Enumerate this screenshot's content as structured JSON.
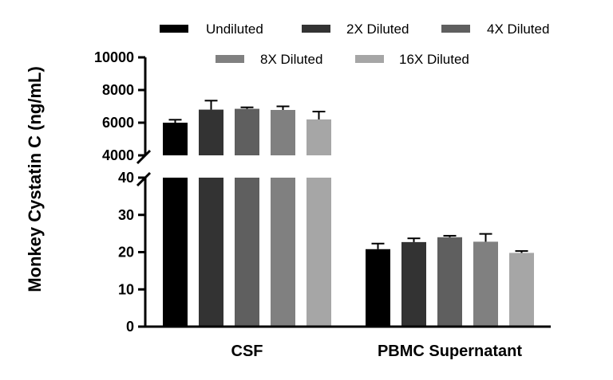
{
  "chart_data": {
    "type": "bar",
    "ylabel": "Monkey Cystatin C (ng/mL)",
    "categories": [
      "CSF",
      "PBMC Supernatant"
    ],
    "series": [
      {
        "name": "Undiluted",
        "color": "#000000",
        "values": [
          6000,
          20.8
        ],
        "errors": [
          180,
          1.5
        ]
      },
      {
        "name": "2X Diluted",
        "color": "#333333",
        "values": [
          6800,
          22.7
        ],
        "errors": [
          550,
          1.0
        ]
      },
      {
        "name": "4X Diluted",
        "color": "#5f5f5f",
        "values": [
          6850,
          24.0
        ],
        "errors": [
          90,
          0.4
        ]
      },
      {
        "name": "8X Diluted",
        "color": "#808080",
        "values": [
          6780,
          22.8
        ],
        "errors": [
          220,
          2.1
        ]
      },
      {
        "name": "16X Diluted",
        "color": "#a6a6a6",
        "values": [
          6200,
          19.8
        ],
        "errors": [
          480,
          0.5
        ]
      }
    ],
    "y_segments": [
      {
        "range": [
          0,
          40
        ],
        "ticks": [
          0,
          10,
          20,
          30,
          40
        ]
      },
      {
        "range": [
          4000,
          10000
        ],
        "ticks": [
          4000,
          6000,
          8000,
          10000
        ]
      }
    ],
    "axis_break": true,
    "legend": "top",
    "grid": false
  }
}
